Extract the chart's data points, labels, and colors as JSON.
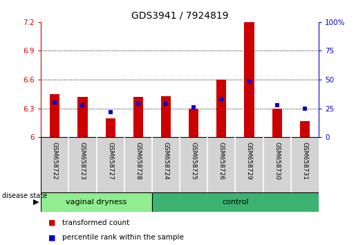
{
  "title": "GDS3941 / 7924819",
  "samples": [
    "GSM658722",
    "GSM658723",
    "GSM658727",
    "GSM658728",
    "GSM658724",
    "GSM658725",
    "GSM658726",
    "GSM658729",
    "GSM658730",
    "GSM658731"
  ],
  "red_values": [
    6.45,
    6.42,
    6.2,
    6.42,
    6.43,
    6.3,
    6.6,
    7.2,
    6.3,
    6.17
  ],
  "blue_values": [
    30,
    28,
    22,
    29,
    29,
    26,
    33,
    48,
    28,
    25
  ],
  "ylim_left": [
    6.0,
    7.2
  ],
  "ylim_right": [
    0,
    100
  ],
  "yticks_left": [
    6.0,
    6.3,
    6.6,
    6.9,
    7.2
  ],
  "yticks_right": [
    0,
    25,
    50,
    75,
    100
  ],
  "yticklabels_left": [
    "6",
    "6.3",
    "6.6",
    "6.9",
    "7.2"
  ],
  "yticklabels_right": [
    "0",
    "25",
    "50",
    "75",
    "100%"
  ],
  "grid_values": [
    6.3,
    6.6,
    6.9
  ],
  "groups": [
    {
      "label": "vaginal dryness",
      "start": 0,
      "end": 4
    },
    {
      "label": "control",
      "start": 4,
      "end": 10
    }
  ],
  "bar_color": "#CC0000",
  "marker_color": "#0000CC",
  "background_color": "#ffffff",
  "left_axis_color": "#CC0000",
  "right_axis_color": "#0000CC",
  "bar_width": 0.35,
  "ybase": 6.0,
  "legend_items": [
    "transformed count",
    "percentile rank within the sample"
  ],
  "legend_colors": [
    "#CC0000",
    "#0000CC"
  ],
  "disease_state_label": "disease state",
  "xtick_bg": "#D3D3D3",
  "group_color_light": "#90EE90",
  "group_color_dark": "#3CB371",
  "title_fontsize": 10,
  "axis_fontsize": 8,
  "tick_fontsize": 7.5,
  "legend_fontsize": 7.5
}
